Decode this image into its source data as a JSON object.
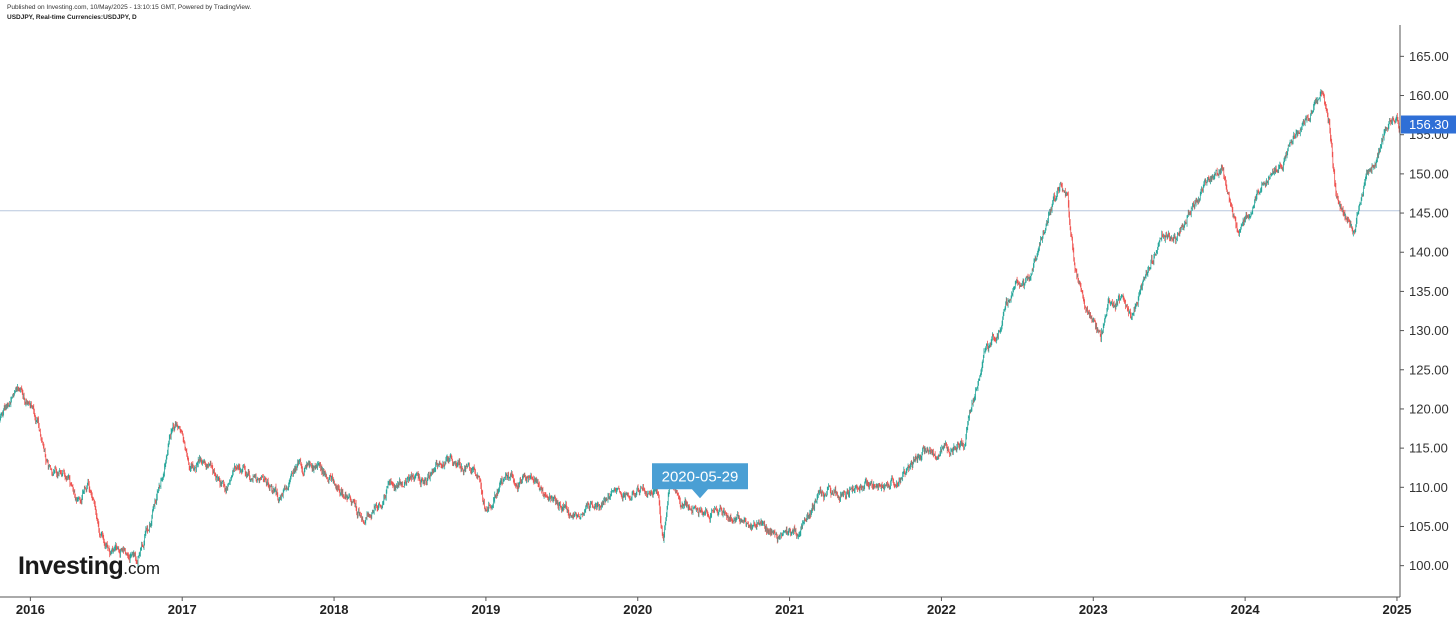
{
  "header": {
    "published_line": "Published on Investing.com, 10/May/2025 - 13:10:15 GMT, Powered by TradingView.",
    "symbol_line": "USDJPY, Real-time Currencies:USDJPY, D"
  },
  "brand": {
    "name": "Investing",
    "suffix": ".com"
  },
  "colors": {
    "up": "#26a69a",
    "down": "#ef5350",
    "last_price_bg": "#2f6fd6",
    "callout_bg": "#4a9fd4",
    "reference_line": "#b8c7dd",
    "axis": "#555555"
  },
  "chart_data": {
    "type": "candlestick",
    "interval": "D",
    "y_axis": {
      "side": "right",
      "range": [
        96,
        169
      ],
      "ticks": [
        "100.00",
        "105.00",
        "110.00",
        "115.00",
        "120.00",
        "125.00",
        "130.00",
        "135.00",
        "140.00",
        "145.00",
        "150.00",
        "155.00",
        "160.00",
        "165.00"
      ]
    },
    "x_axis": {
      "range": [
        2015.8,
        2025.02
      ],
      "ticks": [
        {
          "pos": 2016,
          "label": "2016"
        },
        {
          "pos": 2017,
          "label": "2017"
        },
        {
          "pos": 2018,
          "label": "2018"
        },
        {
          "pos": 2019,
          "label": "2019"
        },
        {
          "pos": 2020,
          "label": "2020"
        },
        {
          "pos": 2021,
          "label": "2021"
        },
        {
          "pos": 2022,
          "label": "2022"
        },
        {
          "pos": 2023,
          "label": "2023"
        },
        {
          "pos": 2024,
          "label": "2024"
        },
        {
          "pos": 2025,
          "label": "2025"
        }
      ]
    },
    "last_price": {
      "value": 156.3,
      "label": "156.30"
    },
    "horizontal_line": {
      "value": 145.3
    },
    "crosshair_date": {
      "label": "2020-05-29",
      "x": 2020.41,
      "price": 108.6
    },
    "price_path": [
      [
        2015.8,
        118.6
      ],
      [
        2015.92,
        123.2
      ],
      [
        2015.98,
        121.0
      ],
      [
        2016.05,
        118.5
      ],
      [
        2016.12,
        112.5
      ],
      [
        2016.22,
        112.0
      ],
      [
        2016.3,
        108.5
      ],
      [
        2016.38,
        110.0
      ],
      [
        2016.45,
        104.0
      ],
      [
        2016.53,
        101.5
      ],
      [
        2016.6,
        102.0
      ],
      [
        2016.7,
        100.8
      ],
      [
        2016.78,
        105.0
      ],
      [
        2016.85,
        110.0
      ],
      [
        2016.92,
        117.5
      ],
      [
        2016.96,
        117.8
      ],
      [
        2017.05,
        113.0
      ],
      [
        2017.15,
        113.5
      ],
      [
        2017.28,
        109.5
      ],
      [
        2017.35,
        112.5
      ],
      [
        2017.45,
        111.0
      ],
      [
        2017.55,
        110.5
      ],
      [
        2017.65,
        108.5
      ],
      [
        2017.75,
        112.8
      ],
      [
        2017.9,
        112.5
      ],
      [
        2018.0,
        110.5
      ],
      [
        2018.1,
        108.5
      ],
      [
        2018.2,
        105.5
      ],
      [
        2018.35,
        110.0
      ],
      [
        2018.5,
        111.0
      ],
      [
        2018.58,
        110.5
      ],
      [
        2018.75,
        113.5
      ],
      [
        2018.85,
        113.0
      ],
      [
        2018.95,
        111.0
      ],
      [
        2019.0,
        107.5
      ],
      [
        2019.1,
        110.5
      ],
      [
        2019.2,
        111.0
      ],
      [
        2019.3,
        111.5
      ],
      [
        2019.4,
        108.5
      ],
      [
        2019.5,
        107.8
      ],
      [
        2019.6,
        106.0
      ],
      [
        2019.65,
        107.5
      ],
      [
        2019.8,
        108.5
      ],
      [
        2019.95,
        109.5
      ],
      [
        2020.05,
        109.8
      ],
      [
        2020.13,
        109.5
      ],
      [
        2020.17,
        102.5
      ],
      [
        2020.21,
        110.5
      ],
      [
        2020.3,
        107.5
      ],
      [
        2020.41,
        107.5
      ],
      [
        2020.55,
        106.5
      ],
      [
        2020.7,
        105.5
      ],
      [
        2020.85,
        104.5
      ],
      [
        2020.95,
        103.3
      ],
      [
        2021.05,
        104.0
      ],
      [
        2021.2,
        109.0
      ],
      [
        2021.35,
        109.3
      ],
      [
        2021.5,
        110.3
      ],
      [
        2021.65,
        110.0
      ],
      [
        2021.75,
        111.5
      ],
      [
        2021.85,
        114.0
      ],
      [
        2021.95,
        114.5
      ],
      [
        2022.05,
        115.0
      ],
      [
        2022.15,
        115.5
      ],
      [
        2022.2,
        121.0
      ],
      [
        2022.3,
        128.0
      ],
      [
        2022.38,
        130.0
      ],
      [
        2022.48,
        136.0
      ],
      [
        2022.55,
        135.0
      ],
      [
        2022.62,
        139.0
      ],
      [
        2022.7,
        144.0
      ],
      [
        2022.78,
        148.5
      ],
      [
        2022.83,
        146.5
      ],
      [
        2022.88,
        138.0
      ],
      [
        2022.95,
        132.5
      ],
      [
        2023.05,
        129.5
      ],
      [
        2023.1,
        134.0
      ],
      [
        2023.18,
        133.5
      ],
      [
        2023.25,
        131.5
      ],
      [
        2023.35,
        137.0
      ],
      [
        2023.45,
        142.0
      ],
      [
        2023.55,
        141.5
      ],
      [
        2023.65,
        146.0
      ],
      [
        2023.75,
        149.0
      ],
      [
        2023.85,
        150.5
      ],
      [
        2023.95,
        142.0
      ],
      [
        2024.05,
        146.5
      ],
      [
        2024.15,
        150.0
      ],
      [
        2024.25,
        151.5
      ],
      [
        2024.32,
        154.5
      ],
      [
        2024.42,
        157.0
      ],
      [
        2024.5,
        160.5
      ],
      [
        2024.55,
        157.0
      ],
      [
        2024.6,
        146.5
      ],
      [
        2024.68,
        143.5
      ],
      [
        2024.72,
        142.5
      ],
      [
        2024.8,
        149.5
      ],
      [
        2024.88,
        152.5
      ],
      [
        2024.95,
        157.0
      ],
      [
        2025.0,
        157.5
      ],
      [
        2025.02,
        156.3
      ]
    ]
  }
}
